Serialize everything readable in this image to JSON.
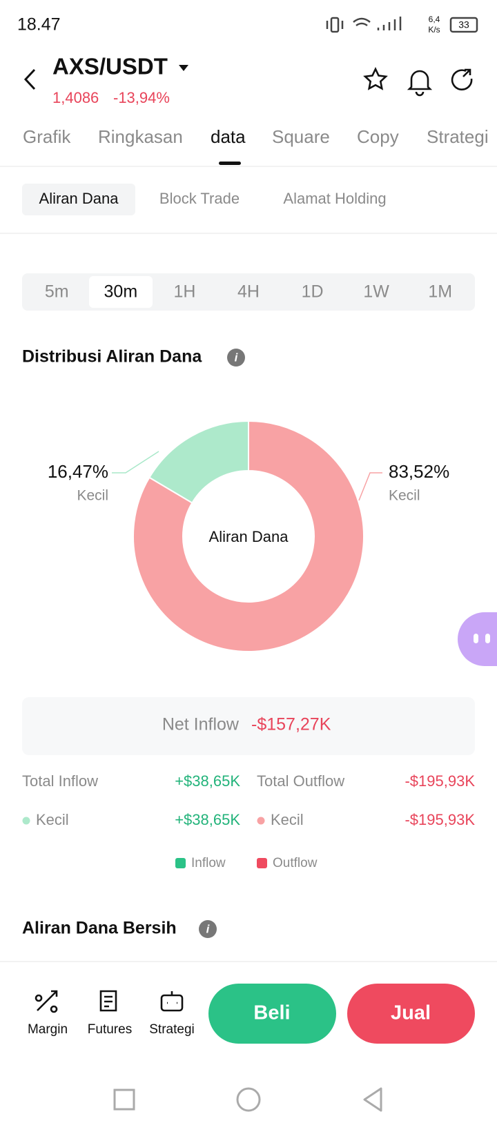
{
  "status_bar": {
    "time": "18.47",
    "speed": "6,4",
    "speed_unit": "K/s",
    "battery": "33"
  },
  "header": {
    "pair": "AXS/USDT",
    "price": "1,4086",
    "change": "-13,94%"
  },
  "tabs": [
    "Grafik",
    "Ringkasan",
    "data",
    "Square",
    "Copy",
    "Strategi"
  ],
  "subtabs": [
    "Aliran Dana",
    "Block Trade",
    "Alamat Holding"
  ],
  "intervals": [
    "5m",
    "30m",
    "1H",
    "4H",
    "1D",
    "1W",
    "1M"
  ],
  "distribution": {
    "title": "Distribusi Aliran Dana",
    "center_label": "Aliran Dana",
    "segments": [
      {
        "value": 16.47,
        "label": "16,47%",
        "name": "Kecil",
        "color": "#ade9cb"
      },
      {
        "value": 83.52,
        "label": "83,52%",
        "name": "Kecil",
        "color": "#f8a2a4"
      }
    ]
  },
  "net_inflow": {
    "label": "Net Inflow",
    "value": "-$157,27K"
  },
  "totals": {
    "inflow_label": "Total Inflow",
    "inflow": "+$38,65K",
    "outflow_label": "Total Outflow",
    "outflow": "-$195,93K",
    "inflow_rows": [
      {
        "name": "Kecil",
        "value": "+$38,65K"
      }
    ],
    "outflow_rows": [
      {
        "name": "Kecil",
        "value": "-$195,93K"
      }
    ]
  },
  "legend": [
    "Inflow",
    "Outflow"
  ],
  "section_title": "Aliran Dana Bersih",
  "bottom_nav": [
    "Margin",
    "Futures",
    "Strategi"
  ],
  "buy": "Beli",
  "sell": "Jual"
}
